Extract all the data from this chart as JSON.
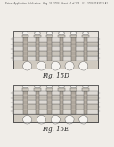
{
  "bg_color": "#f0ede8",
  "header_text": "Patent Application Publication   Aug. 26, 2004  Sheet 14 of 274   U.S. 2004/0183193 A1",
  "header_fontsize": 1.9,
  "fig1_label": "Fig. 15D",
  "fig2_label": "Fig. 15E",
  "fig_label_fontsize": 5.0,
  "line_color": "#404040",
  "fill_light": "#e8e4de",
  "fill_mid": "#d0cac0",
  "fill_dark": "#b8b0a5",
  "fill_white": "#f5f3f0"
}
